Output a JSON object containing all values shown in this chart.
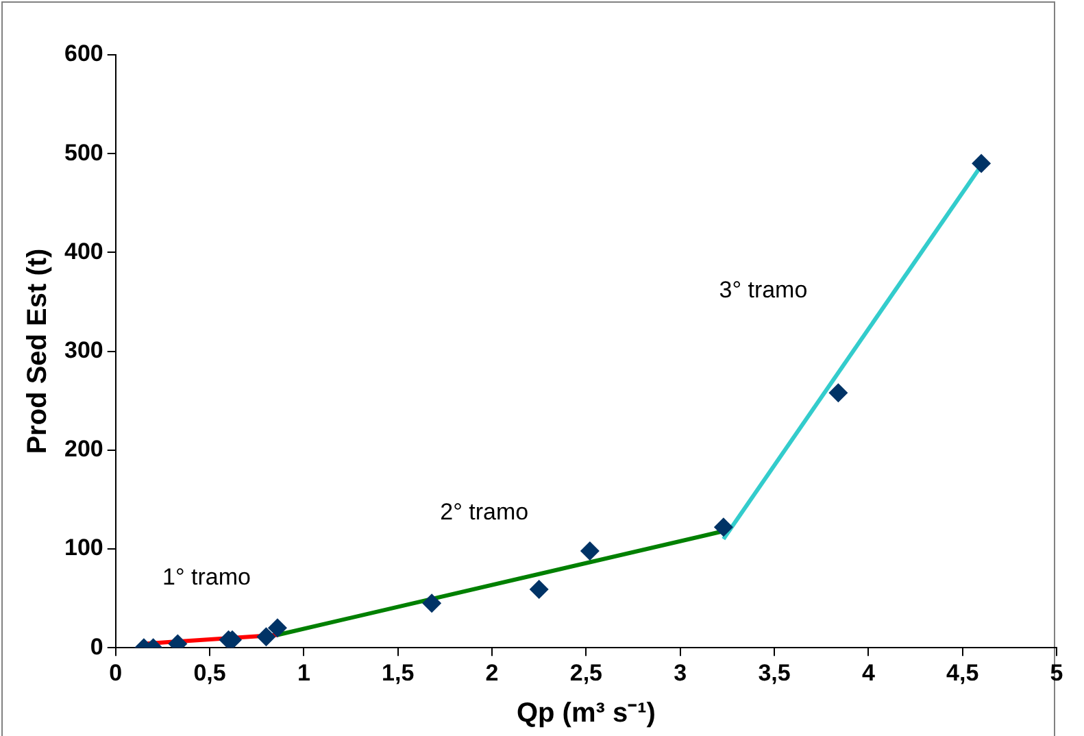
{
  "chart_data": {
    "type": "scatter",
    "xlabel": "Qp (m³ s⁻¹)",
    "ylabel": "Prod Sed Est (t)",
    "xlim": [
      0,
      5
    ],
    "xticks": [
      0,
      {
        "value": 0.5,
        "label": "0,5"
      },
      1,
      {
        "value": 1.5,
        "label": "1,5"
      },
      2,
      {
        "value": 2.5,
        "label": "2,5"
      },
      3,
      {
        "value": 3.5,
        "label": "3,5"
      },
      4,
      {
        "value": 4.5,
        "label": "4,5"
      },
      5
    ],
    "ylim": [
      0,
      600
    ],
    "yticks": [
      0,
      100,
      200,
      300,
      400,
      500,
      600
    ],
    "grid": false,
    "legend": false,
    "series": [
      {
        "type": "scatter",
        "marker": "diamond",
        "color": "#003366",
        "x": [
          0.15,
          0.2,
          0.33,
          0.6,
          0.62,
          0.8,
          0.86,
          1.68,
          2.25,
          2.52,
          3.23,
          3.84,
          4.6
        ],
        "values": [
          0,
          0,
          4,
          8,
          8,
          11,
          20,
          45,
          59,
          98,
          122,
          258,
          490
        ]
      },
      {
        "type": "line",
        "marker": "none",
        "color": "#ff0000",
        "x": [
          0.15,
          0.86
        ],
        "values": [
          4,
          13
        ]
      },
      {
        "type": "line",
        "marker": "none",
        "color": "#008000",
        "x": [
          0.86,
          3.23
        ],
        "values": [
          13,
          118
        ]
      },
      {
        "type": "line",
        "marker": "none",
        "color": "#33cccc",
        "x": [
          3.23,
          4.6
        ],
        "values": [
          110,
          488
        ]
      }
    ],
    "annotations": [
      "1° tramo",
      "2° tramo",
      "3° tramo"
    ]
  }
}
